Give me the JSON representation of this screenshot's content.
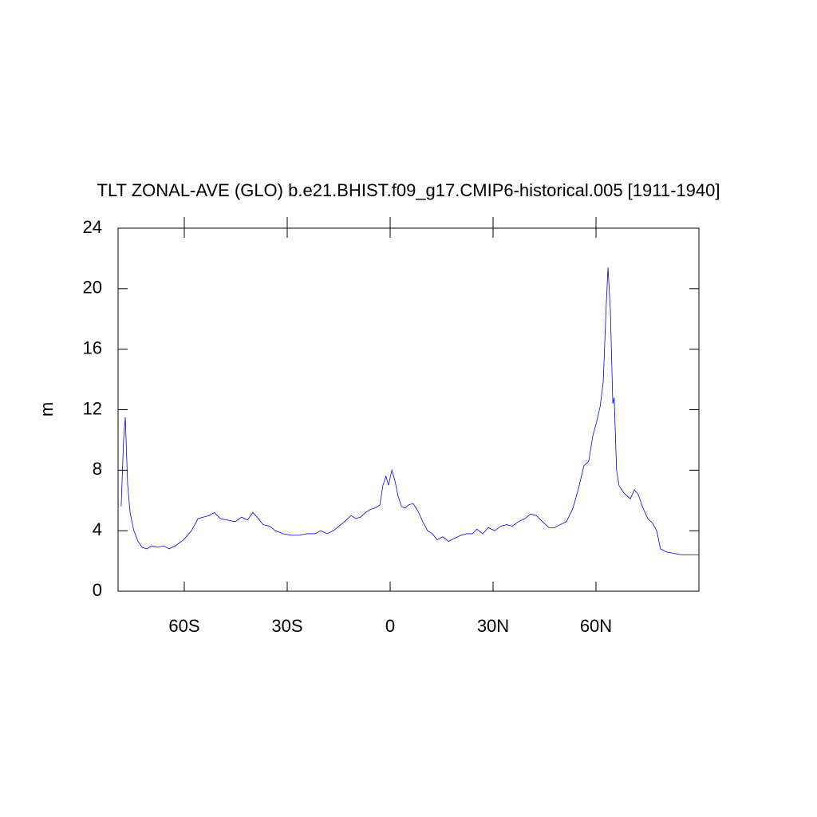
{
  "chart_data": {
    "type": "line",
    "title": "TLT ZONAL-AVE (GLO) b.e21.BHIST.f09_g17.CMIP6-historical.005 [1911-1940]",
    "ylabel": "m",
    "x": [
      -78.4,
      -77.7,
      -77.2,
      -76.5,
      -75.8,
      -74.7,
      -73.5,
      -72.3,
      -70.9,
      -69.5,
      -67.7,
      -66,
      -64.4,
      -62.6,
      -60.2,
      -57.9,
      -56,
      -54.4,
      -52.8,
      -51.2,
      -49.5,
      -47.4,
      -45.1,
      -43.3,
      -41.6,
      -40,
      -38.8,
      -37,
      -35.1,
      -33.5,
      -31.2,
      -28.8,
      -26.5,
      -24.2,
      -21.9,
      -20.2,
      -18.4,
      -16.5,
      -14.9,
      -13.3,
      -11.4,
      -10,
      -8.6,
      -7.2,
      -5.8,
      -4.4,
      -3,
      -2.1,
      -1.2,
      -0.5,
      0.5,
      1.4,
      2.3,
      3.3,
      4.4,
      5.3,
      6.7,
      8.1,
      9.5,
      10.9,
      12.3,
      13.7,
      15.3,
      17,
      18.8,
      20.7,
      22.3,
      24,
      25.3,
      27,
      28.6,
      30.5,
      32.3,
      34,
      35.6,
      37.4,
      39.3,
      40.9,
      42.6,
      44.4,
      46.3,
      47.9,
      49.5,
      51.4,
      53.3,
      54.9,
      56.5,
      57.9,
      59.1,
      60.2,
      61.2,
      62.1,
      63,
      63.5,
      64.2,
      64.9,
      65.3,
      66,
      66.7,
      68.1,
      70,
      71.2,
      72.3,
      73.7,
      75.1,
      76.5,
      77.7,
      78.8,
      80.5,
      82.8,
      85.1,
      90
    ],
    "series": [
      {
        "color": "#0000ff",
        "values": [
          5.6,
          10,
          11.5,
          7,
          5.2,
          4,
          3.3,
          2.9,
          2.8,
          3.0,
          2.9,
          3.0,
          2.8,
          3.0,
          3.4,
          4.0,
          4.8,
          4.9,
          5.0,
          5.2,
          4.8,
          4.7,
          4.6,
          4.9,
          4.7,
          5.2,
          4.9,
          4.4,
          4.3,
          4.0,
          3.8,
          3.7,
          3.7,
          3.8,
          3.8,
          4.0,
          3.8,
          4.0,
          4.3,
          4.6,
          5.0,
          4.8,
          4.9,
          5.2,
          5.4,
          5.5,
          5.7,
          7.0,
          7.6,
          7.0,
          8.0,
          7.3,
          6.3,
          5.6,
          5.5,
          5.7,
          5.8,
          5.3,
          4.6,
          4.0,
          3.8,
          3.4,
          3.6,
          3.3,
          3.5,
          3.7,
          3.8,
          3.8,
          4.1,
          3.8,
          4.2,
          4.0,
          4.3,
          4.4,
          4.3,
          4.6,
          4.8,
          5.1,
          5.0,
          4.6,
          4.2,
          4.2,
          4.4,
          4.6,
          5.5,
          6.8,
          8.3,
          8.6,
          10.3,
          11.2,
          12.2,
          13.8,
          19.0,
          21.4,
          18.5,
          12.4,
          12.8,
          8.0,
          7.0,
          6.5,
          6.1,
          6.7,
          6.4,
          5.5,
          4.8,
          4.5,
          4.0,
          2.8,
          2.6,
          2.5,
          2.4,
          2.4
        ]
      }
    ],
    "xlim": [
      -79.3,
      90
    ],
    "xticks": [
      {
        "value": -60,
        "label": "60S"
      },
      {
        "value": -30,
        "label": "30S"
      },
      0,
      {
        "value": 30,
        "label": "30N"
      },
      {
        "value": 60,
        "label": "60N"
      }
    ],
    "ylim": [
      0,
      24
    ],
    "yticks": [
      0,
      4,
      8,
      12,
      16,
      20,
      24
    ]
  }
}
